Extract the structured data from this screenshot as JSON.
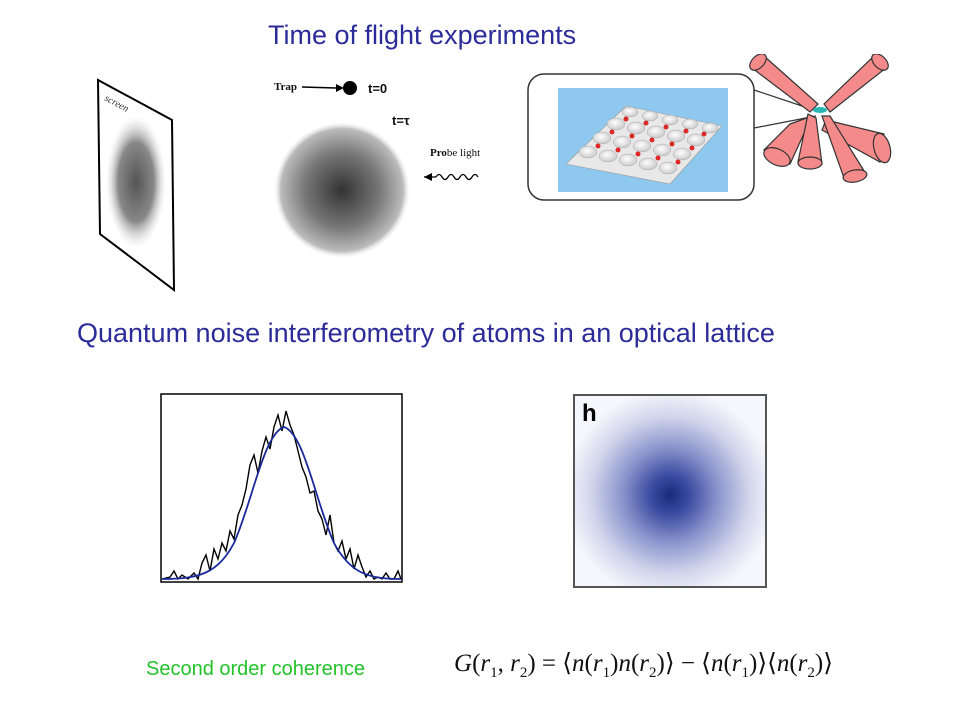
{
  "slide": {
    "title_top": "Time of flight experiments",
    "title_mid": "Quantum noise interferometry of atoms in an optical lattice",
    "coherence_label": "Second order coherence",
    "formula": {
      "lhs": "G(r",
      "text": "G(r1, r2) = ⟨n(r1)n(r2)⟩ − ⟨n(r1)⟩⟨n(r2)⟩"
    }
  },
  "tof_figure": {
    "screen_label": "screen",
    "trap_label": "Trap",
    "t0_label": "t=0",
    "ttau_label": "t=τ",
    "probe_label_bold": "Pro",
    "probe_label_rest": "be light"
  },
  "panel_h": {
    "label": "h"
  },
  "colors": {
    "title": "#2b2b9a",
    "coherence": "#22c22a",
    "fit_curve": "#1a2a9a",
    "noisy_curve": "#000000",
    "laser_beams": "#f48a8a",
    "lattice_bg": "#8ec8ee"
  }
}
